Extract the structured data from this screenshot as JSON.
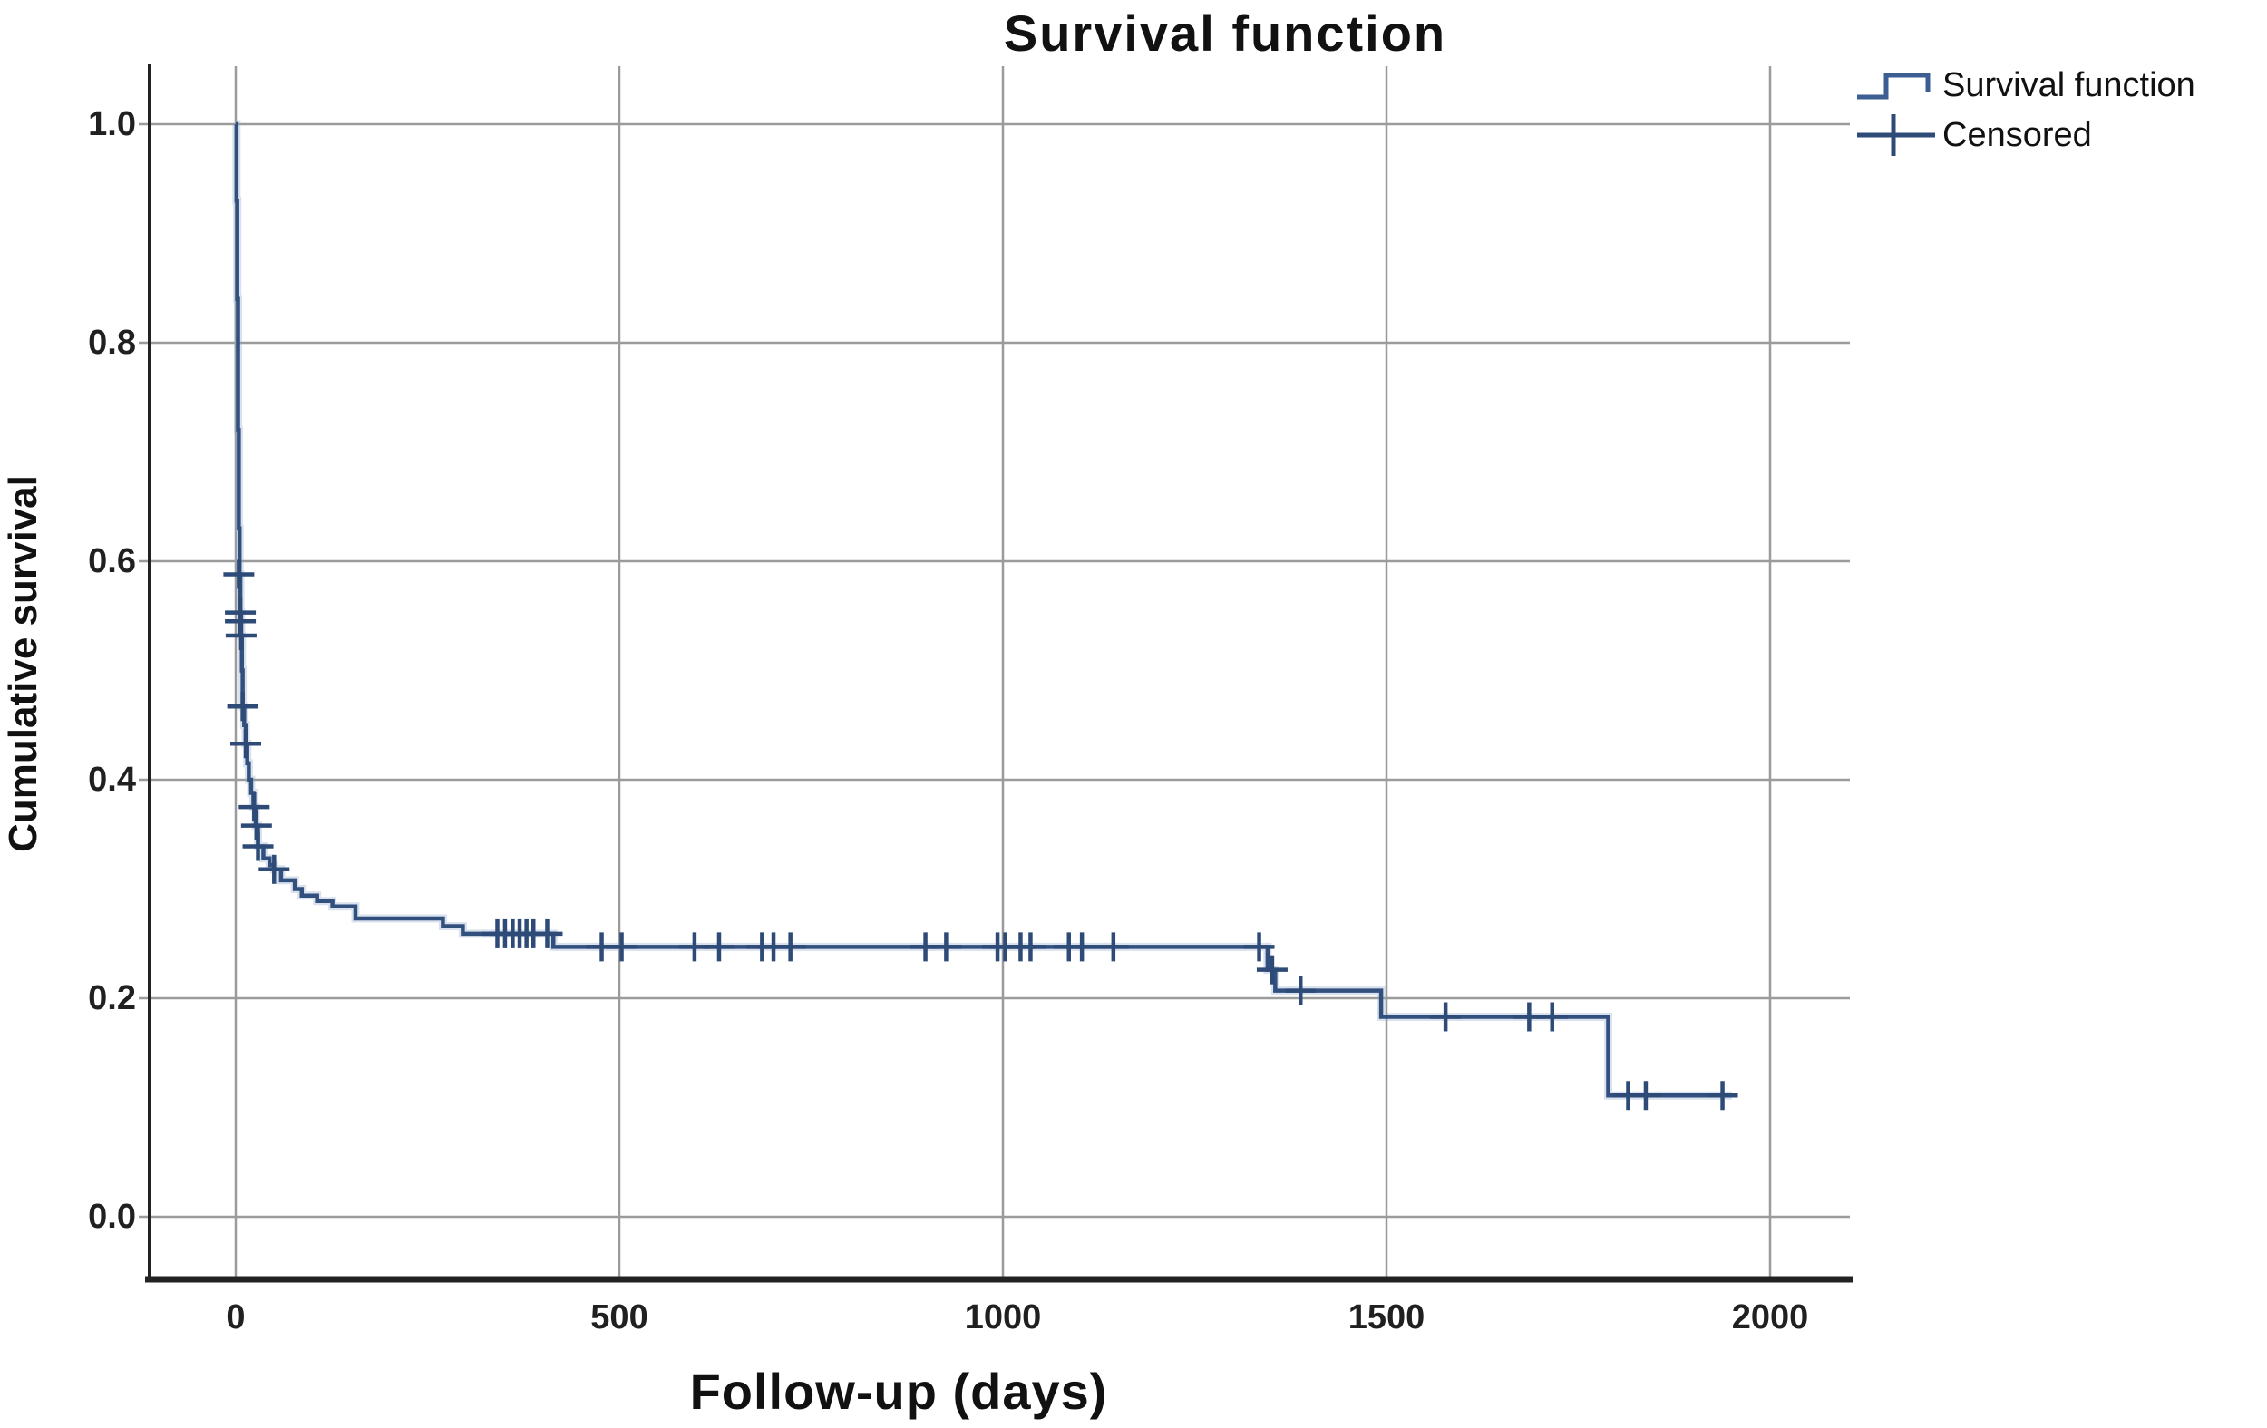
{
  "title": "Survival function",
  "legend": {
    "items": [
      {
        "label": "Survival function",
        "symbol": "step-line"
      },
      {
        "label": "Censored",
        "symbol": "plus-tick"
      }
    ]
  },
  "axes": {
    "x": {
      "title": "Follow-up (days)",
      "tick_labels": [
        "0",
        "500",
        "1000",
        "1500",
        "2000"
      ],
      "tick_values": [
        0,
        500,
        1000,
        1500,
        2000
      ],
      "range": [
        0,
        2000
      ]
    },
    "y": {
      "title": "Cumulative survival",
      "tick_labels": [
        "1.0",
        "0.8",
        "0.6",
        "0.4",
        "0.2",
        "0.0"
      ],
      "tick_values": [
        1.0,
        0.8,
        0.6,
        0.4,
        0.2,
        0.0
      ],
      "range": [
        0,
        1.0
      ]
    }
  },
  "colors": {
    "curve": "#31507e",
    "curve_halo": "#8fa9cc",
    "censor": "#2e4b78",
    "grid": "#9b9b9b",
    "axis": "#222222",
    "text": "#1a1a1a",
    "background": "#ffffff"
  },
  "chart_data": {
    "type": "line",
    "subtype": "kaplan-meier-step",
    "title": "Survival function",
    "xlabel": "Follow-up (days)",
    "ylabel": "Cumulative survival",
    "xlim": [
      0,
      2000
    ],
    "ylim": [
      0,
      1.0
    ],
    "grid": true,
    "legend_position": "top-right",
    "series": [
      {
        "name": "Survival function",
        "survival_steps": [
          [
            0,
            1.0
          ],
          [
            1,
            0.93
          ],
          [
            2,
            0.84
          ],
          [
            3,
            0.72
          ],
          [
            4,
            0.63
          ],
          [
            5,
            0.588
          ],
          [
            6,
            0.553
          ],
          [
            7,
            0.532
          ],
          [
            8,
            0.5
          ],
          [
            9,
            0.467
          ],
          [
            11,
            0.45
          ],
          [
            13,
            0.433
          ],
          [
            15,
            0.415
          ],
          [
            17,
            0.4
          ],
          [
            20,
            0.388
          ],
          [
            23,
            0.375
          ],
          [
            26,
            0.358
          ],
          [
            29,
            0.339
          ],
          [
            36,
            0.328
          ],
          [
            44,
            0.322
          ],
          [
            50,
            0.318
          ],
          [
            59,
            0.308
          ],
          [
            77,
            0.3
          ],
          [
            86,
            0.294
          ],
          [
            106,
            0.289
          ],
          [
            126,
            0.284
          ],
          [
            156,
            0.273
          ],
          [
            270,
            0.266
          ],
          [
            296,
            0.259
          ],
          [
            414,
            0.247
          ],
          [
            1345,
            0.226
          ],
          [
            1355,
            0.207
          ],
          [
            1493,
            0.183
          ],
          [
            1789,
            0.111
          ],
          [
            1950,
            0.111
          ]
        ]
      },
      {
        "name": "Censored",
        "censored_points": [
          [
            4,
            0.588
          ],
          [
            6,
            0.553
          ],
          [
            6,
            0.545
          ],
          [
            7,
            0.532
          ],
          [
            9,
            0.467
          ],
          [
            13,
            0.433
          ],
          [
            24,
            0.375
          ],
          [
            27,
            0.358
          ],
          [
            29,
            0.339
          ],
          [
            50,
            0.318
          ],
          [
            341,
            0.259
          ],
          [
            351,
            0.259
          ],
          [
            361,
            0.259
          ],
          [
            370,
            0.259
          ],
          [
            379,
            0.259
          ],
          [
            388,
            0.259
          ],
          [
            406,
            0.259
          ],
          [
            477,
            0.247
          ],
          [
            503,
            0.247
          ],
          [
            598,
            0.247
          ],
          [
            630,
            0.247
          ],
          [
            686,
            0.247
          ],
          [
            701,
            0.247
          ],
          [
            723,
            0.247
          ],
          [
            899,
            0.247
          ],
          [
            926,
            0.247
          ],
          [
            993,
            0.247
          ],
          [
            1003,
            0.247
          ],
          [
            1023,
            0.247
          ],
          [
            1036,
            0.247
          ],
          [
            1086,
            0.247
          ],
          [
            1103,
            0.247
          ],
          [
            1144,
            0.247
          ],
          [
            1334,
            0.247
          ],
          [
            1351,
            0.226
          ],
          [
            1388,
            0.207
          ],
          [
            1577,
            0.183
          ],
          [
            1686,
            0.183
          ],
          [
            1716,
            0.183
          ],
          [
            1815,
            0.111
          ],
          [
            1838,
            0.111
          ],
          [
            1938,
            0.111
          ]
        ]
      }
    ]
  }
}
